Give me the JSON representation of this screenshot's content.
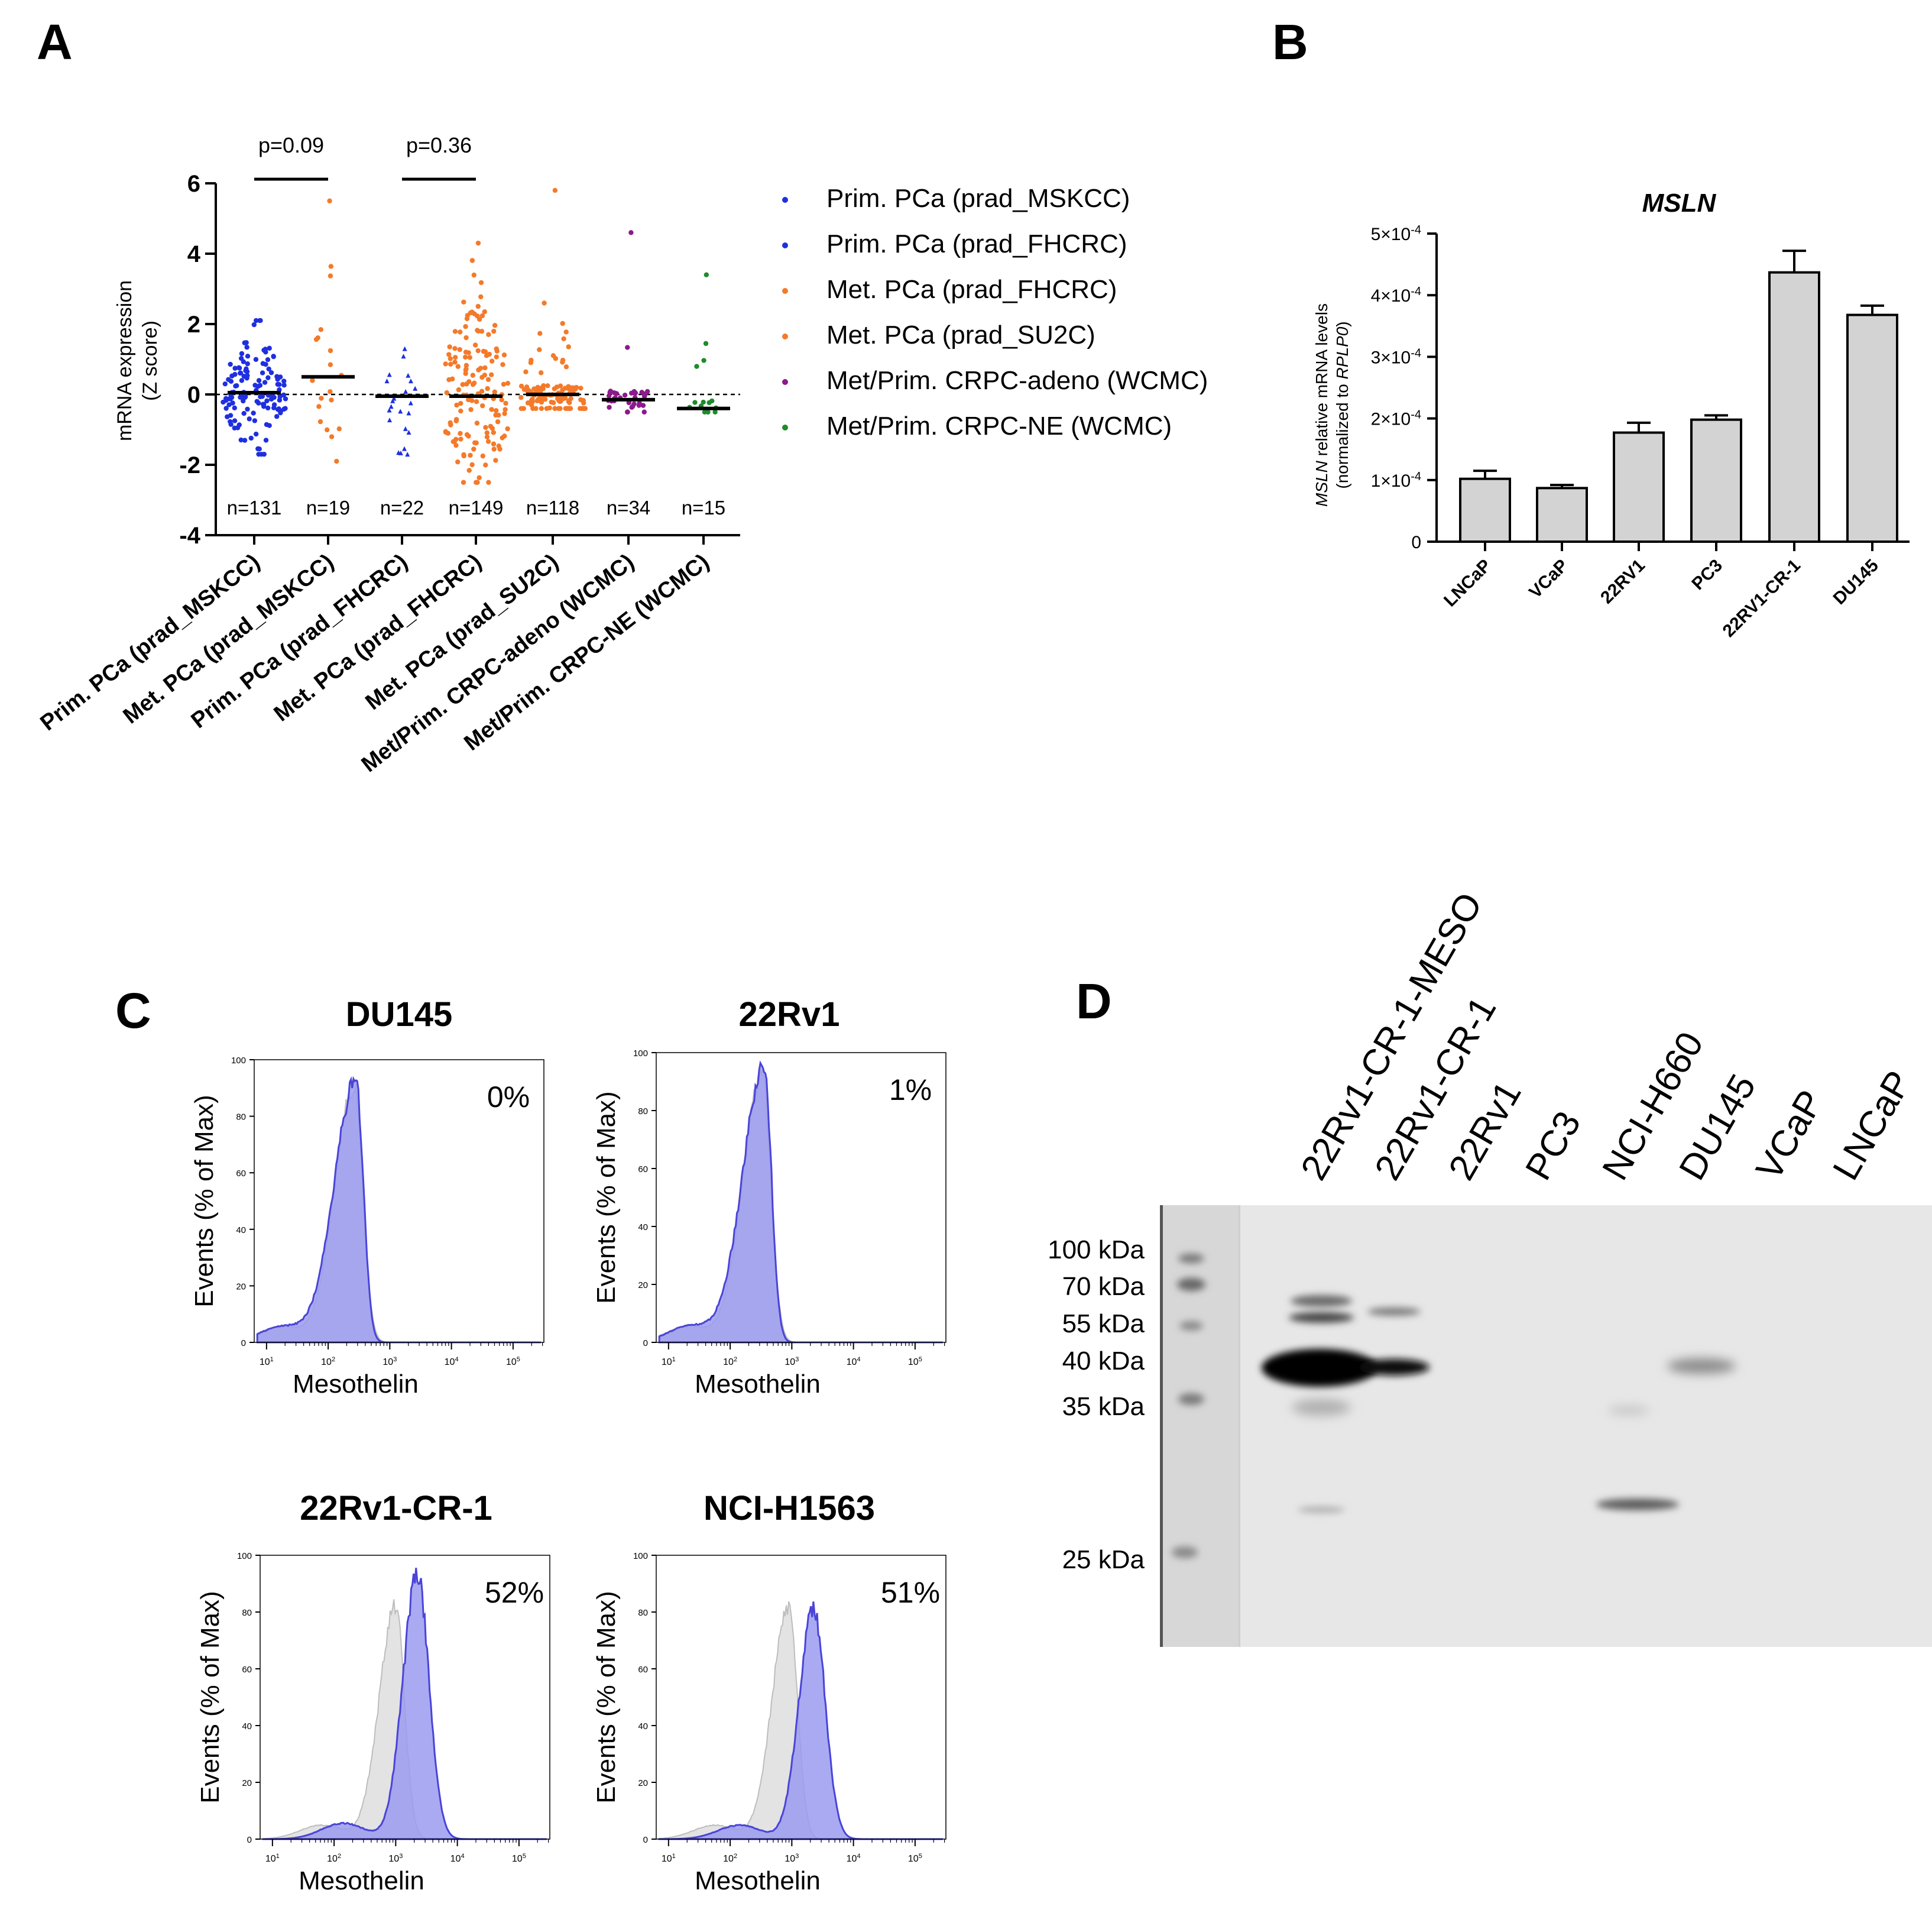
{
  "panel_labels": {
    "a": "A",
    "b": "B",
    "c": "C",
    "d": "D"
  },
  "colors": {
    "blue": "#1f2fe0",
    "orange": "#f47a2a",
    "purple": "#8b1a8b",
    "green": "#1e8c2a",
    "bar_fill": "#d3d3d3",
    "hist_fill": "#9b9bf0",
    "hist_edge": "#4a44d8",
    "hist_ctrl": "#dcdcdc"
  },
  "chart_data": [
    {
      "panel": "A",
      "type": "scatter",
      "subtype": "strip",
      "ylabel": "mRNA expression (Z score)",
      "ylabel_lines": [
        "mRNA expression",
        "(Z score)"
      ],
      "ylim": [
        -4,
        6
      ],
      "yticks": [
        "6",
        "4",
        "2",
        "0",
        "-2",
        "-4"
      ],
      "reference_line": 0,
      "categories": [
        "Prim. PCa (prad_MSKCC)",
        "Met. PCa (prad_MSKCC)",
        "Prim. PCa (prad_FHCRC)",
        "Met. PCa (prad_FHCRC)",
        "Met. PCa (prad_SU2C)",
        "Met/Prim. CRPC-adeno (WCMC)",
        "Met/Prim. CRPC-NE (WCMC)"
      ],
      "n_labels": [
        "n=131",
        "n=19",
        "n=22",
        "n=149",
        "n=118",
        "n=34",
        "n=15"
      ],
      "medians": [
        0.05,
        0.5,
        -0.05,
        -0.05,
        0.0,
        -0.15,
        -0.4
      ],
      "y_range_points": [
        [
          -1.7,
          2.1
        ],
        [
          -1.9,
          5.5
        ],
        [
          -1.7,
          1.3
        ],
        [
          -2.5,
          4.3
        ],
        [
          -0.4,
          5.8
        ],
        [
          -0.5,
          4.6
        ],
        [
          -0.5,
          3.4
        ]
      ],
      "series_colors": [
        "blue",
        "orange",
        "blue",
        "orange",
        "orange",
        "purple",
        "green"
      ],
      "comparisons": [
        {
          "groups": [
            0,
            1
          ],
          "label": "p=0.09"
        },
        {
          "groups": [
            2,
            3
          ],
          "label": "p=0.36"
        }
      ],
      "legend": [
        {
          "label": "Prim. PCa (prad_MSKCC)",
          "color": "blue"
        },
        {
          "label": "Prim. PCa (prad_FHCRC)",
          "color": "blue"
        },
        {
          "label": "Met. PCa (prad_FHCRC)",
          "color": "orange"
        },
        {
          "label": "Met. PCa (prad_SU2C)",
          "color": "orange"
        },
        {
          "label": "Met/Prim. CRPC-adeno (WCMC)",
          "color": "purple"
        },
        {
          "label": "Met/Prim. CRPC-NE (WCMC)",
          "color": "green"
        }
      ]
    },
    {
      "panel": "B",
      "type": "bar",
      "title": "MSLN",
      "ylabel_lines": [
        "MSLN relative mRNA levels",
        "(normalized to RPLP0)"
      ],
      "ylim": [
        0,
        0.0005
      ],
      "yticks": [
        {
          "base": "0",
          "exp": ""
        },
        {
          "base": "1×10",
          "exp": "-4"
        },
        {
          "base": "2×10",
          "exp": "-4"
        },
        {
          "base": "3×10",
          "exp": "-4"
        },
        {
          "base": "4×10",
          "exp": "-4"
        },
        {
          "base": "5×10",
          "exp": "-4"
        }
      ],
      "categories": [
        "LNCaP",
        "VCaP",
        "22RV1",
        "PC3",
        "22RV1-CR-1",
        "DU145"
      ],
      "values": [
        0.000102,
        8.7e-05,
        0.000177,
        0.000198,
        0.000437,
        0.000368
      ],
      "errors": [
        1.3e-05,
        5e-06,
        1.6e-05,
        7e-06,
        3.5e-05,
        1.5e-05
      ]
    },
    {
      "panel": "C",
      "type": "area",
      "subtype": "flow-cytometry-histogram",
      "xlabel": "Mesothelin",
      "ylabel": "Events (% of Max)",
      "ylim": [
        0,
        100
      ],
      "yticks": [
        "0",
        "20",
        "40",
        "60",
        "80",
        "100"
      ],
      "xticks": [
        {
          "base": "10",
          "exp": "1"
        },
        {
          "base": "10",
          "exp": "2"
        },
        {
          "base": "10",
          "exp": "3"
        },
        {
          "base": "10",
          "exp": "4"
        },
        {
          "base": "10",
          "exp": "5"
        }
      ],
      "plots": [
        {
          "title": "DU145",
          "percent": "0%",
          "stained_peak_log10": 2.45,
          "control_peak_log10": 2.42,
          "stained_peak_height": 93
        },
        {
          "title": "22Rv1",
          "percent": "1%",
          "stained_peak_log10": 2.55,
          "control_peak_log10": 2.52,
          "stained_peak_height": 95
        },
        {
          "title": "22Rv1-CR-1",
          "percent": "52%",
          "stained_peak_log10": 3.35,
          "control_peak_log10": 3.0,
          "stained_peak_height": 93
        },
        {
          "title": "NCI-H1563",
          "percent": "51%",
          "stained_peak_log10": 3.35,
          "control_peak_log10": 2.95,
          "stained_peak_height": 81
        }
      ]
    }
  ],
  "western_blot": {
    "lanes": [
      "22Rv1-CR-1-MESO",
      "22Rv1-CR-1",
      "22Rv1",
      "PC3",
      "NCI-H660",
      "DU145",
      "VCaP",
      "LNCaP"
    ],
    "markers": [
      "100 kDa",
      "70 kDa",
      "55 kDa",
      "40 kDa",
      "35 kDa",
      "25 kDa"
    ]
  }
}
